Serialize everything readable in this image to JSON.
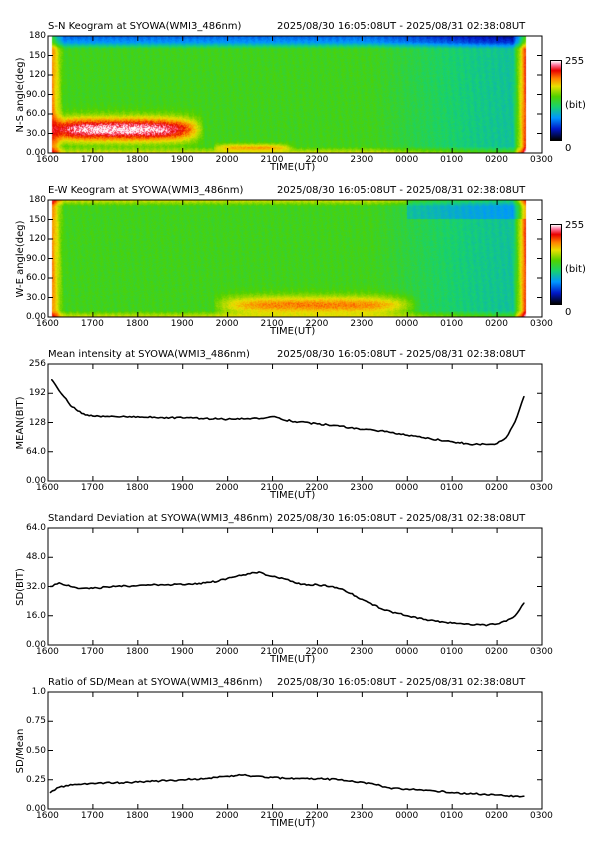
{
  "chart_data": [
    {
      "type": "heatmap",
      "title": "S-N Keogram at SYOWA(WMI3_486nm)",
      "time_range": "2025/08/30 16:05:08UT - 2025/08/31 02:38:08UT",
      "xlabel": "TIME(UT)",
      "ylabel": "N-S angle(deg)",
      "x_ticks": [
        "1600",
        "1700",
        "1800",
        "1900",
        "2000",
        "2100",
        "2200",
        "2300",
        "0000",
        "0100",
        "0200",
        "0300"
      ],
      "y_ticks": [
        "0.00",
        "30.0",
        "60.0",
        "90.0",
        "120",
        "150",
        "180"
      ],
      "ylim": [
        0,
        180
      ],
      "colorbar": {
        "max_label": "255",
        "unit_label": "(bit)",
        "min_label": "0"
      },
      "features": [
        {
          "type": "bright-arc",
          "t_start_h": 16.05,
          "t_end_h": 19.2,
          "angle_center": 36,
          "angle_width": 30,
          "peak": 255
        },
        {
          "type": "diffuse-band",
          "t_start_h": 19.9,
          "t_end_h": 21.2,
          "angle_center": 8,
          "angle_width": 10,
          "peak": 190
        }
      ]
    },
    {
      "type": "heatmap",
      "title": "E-W Keogram at SYOWA(WMI3_486nm)",
      "time_range": "2025/08/30 16:05:08UT - 2025/08/31 02:38:08UT",
      "xlabel": "TIME(UT)",
      "ylabel": "W-E angle(deg)",
      "x_ticks": [
        "1600",
        "1700",
        "1800",
        "1900",
        "2000",
        "2100",
        "2200",
        "2300",
        "0000",
        "0100",
        "0200",
        "0300"
      ],
      "y_ticks": [
        "0.00",
        "30.0",
        "60.0",
        "90.0",
        "120",
        "150",
        "180"
      ],
      "ylim": [
        0,
        180
      ],
      "colorbar": {
        "max_label": "255",
        "unit_label": "(bit)",
        "min_label": "0"
      },
      "features": [
        {
          "type": "diffuse-patch",
          "t_start_h": 19.9,
          "t_end_h": 24.0,
          "angle_center": 18,
          "angle_width": 24,
          "peak": 200
        }
      ]
    },
    {
      "type": "line",
      "title": "Mean intensity at SYOWA(WMI3_486nm)",
      "time_range": "2025/08/30 16:05:08UT - 2025/08/31 02:38:08UT",
      "xlabel": "TIME(UT)",
      "ylabel": "MEAN(BIT)",
      "x_ticks": [
        "1600",
        "1700",
        "1800",
        "1900",
        "2000",
        "2100",
        "2200",
        "2300",
        "0000",
        "0100",
        "0200",
        "0300"
      ],
      "y_ticks": [
        "0.00",
        "64.0",
        "128",
        "192",
        "256"
      ],
      "ylim": [
        0,
        256
      ],
      "x_hours": [
        16.08,
        16.2,
        16.35,
        16.5,
        16.75,
        17.0,
        17.5,
        18.0,
        18.5,
        19.0,
        19.5,
        20.0,
        20.4,
        20.6,
        20.8,
        21.0,
        21.2,
        21.5,
        22.0,
        22.5,
        23.0,
        23.3,
        23.5,
        24.0,
        24.5,
        25.0,
        25.3,
        25.5,
        25.8,
        26.0,
        26.2,
        26.4,
        26.6
      ],
      "values": [
        222,
        205,
        185,
        165,
        148,
        142,
        141,
        141,
        139,
        138,
        137,
        135,
        136,
        138,
        137,
        141,
        135,
        130,
        125,
        120,
        113,
        110,
        108,
        100,
        93,
        86,
        82,
        80,
        80,
        82,
        95,
        130,
        185
      ]
    },
    {
      "type": "line",
      "title": "Standard Deviation at SYOWA(WMI3_486nm)",
      "time_range": "2025/08/30 16:05:08UT - 2025/08/31 02:38:08UT",
      "xlabel": "TIME(UT)",
      "ylabel": "SD(BIT)",
      "x_ticks": [
        "1600",
        "1700",
        "1800",
        "1900",
        "2000",
        "2100",
        "2200",
        "2300",
        "0000",
        "0100",
        "0200",
        "0300"
      ],
      "y_ticks": [
        "0.00",
        "16.0",
        "32.0",
        "48.0",
        "64.0"
      ],
      "ylim": [
        0,
        64
      ],
      "x_hours": [
        16.05,
        16.25,
        16.5,
        16.75,
        17.0,
        17.5,
        18.0,
        18.5,
        19.0,
        19.5,
        19.8,
        20.0,
        20.3,
        20.5,
        20.7,
        20.9,
        21.1,
        21.3,
        21.5,
        21.8,
        22.0,
        22.3,
        22.6,
        23.0,
        23.5,
        24.0,
        24.5,
        25.0,
        25.5,
        25.8,
        26.0,
        26.2,
        26.4,
        26.6
      ],
      "values": [
        32,
        34,
        32,
        31,
        31,
        32,
        32.5,
        33,
        33,
        34,
        35,
        36.5,
        38,
        39,
        40,
        38,
        37,
        36,
        34,
        33,
        33,
        32,
        30,
        25,
        19,
        16,
        13.5,
        12,
        11,
        11,
        11.5,
        13,
        16,
        23
      ]
    },
    {
      "type": "line",
      "title": "Ratio of SD/Mean at SYOWA(WMI3_486nm)",
      "time_range": "2025/08/30 16:05:08UT - 2025/08/31 02:38:08UT",
      "xlabel": "TIME(UT)",
      "ylabel": "SD/Mean",
      "x_ticks": [
        "1600",
        "1700",
        "1800",
        "1900",
        "2000",
        "2100",
        "2200",
        "2300",
        "0000",
        "0100",
        "0200",
        "0300"
      ],
      "y_ticks": [
        "0.00",
        "0.25",
        "0.50",
        "0.75",
        "1.0"
      ],
      "ylim": [
        0,
        1.0
      ],
      "x_hours": [
        16.05,
        16.2,
        16.4,
        16.6,
        17.0,
        17.5,
        18.0,
        18.5,
        19.0,
        19.5,
        20.0,
        20.3,
        20.6,
        21.0,
        21.3,
        21.6,
        22.0,
        22.5,
        23.0,
        23.4,
        23.6,
        24.0,
        24.5,
        25.0,
        25.5,
        26.0,
        26.4,
        26.6
      ],
      "values": [
        0.14,
        0.18,
        0.2,
        0.21,
        0.22,
        0.225,
        0.23,
        0.24,
        0.25,
        0.26,
        0.28,
        0.29,
        0.28,
        0.27,
        0.26,
        0.26,
        0.26,
        0.25,
        0.23,
        0.2,
        0.18,
        0.17,
        0.16,
        0.14,
        0.13,
        0.12,
        0.11,
        0.11
      ]
    }
  ]
}
